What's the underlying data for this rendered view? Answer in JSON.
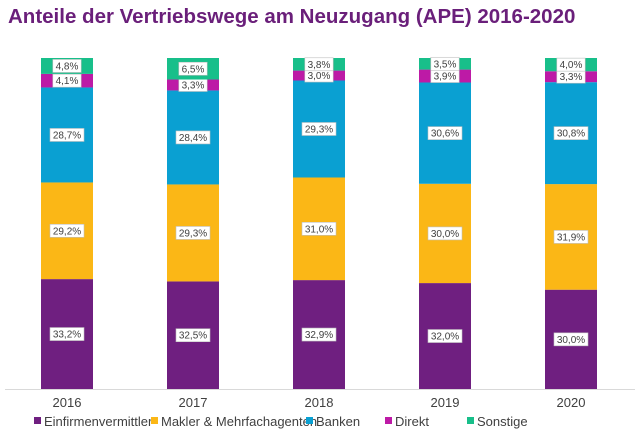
{
  "chart_data": {
    "type": "bar",
    "stacked": true,
    "title": "Anteile der Vertriebswege am Neuzugang (APE) 2016-2020",
    "xlabel": "",
    "ylabel": "",
    "ylim": [
      0,
      100
    ],
    "grid": false,
    "legend": "bottom",
    "categories": [
      "2016",
      "2017",
      "2018",
      "2019",
      "2020"
    ],
    "series": [
      {
        "name": "Einfirmenvermittler",
        "color": "#6f1f80",
        "values": [
          33.2,
          32.5,
          32.9,
          32.0,
          30.0
        ],
        "labels": [
          "33,2%",
          "32,5%",
          "32,9%",
          "32,0%",
          "30,0%"
        ]
      },
      {
        "name": "Makler & Mehrfachagenten",
        "color": "#fbb716",
        "values": [
          29.2,
          29.3,
          31.0,
          30.0,
          31.9
        ],
        "labels": [
          "29,2%",
          "29,3%",
          "31,0%",
          "30,0%",
          "31,9%"
        ]
      },
      {
        "name": "Banken",
        "color": "#0aa0d2",
        "values": [
          28.7,
          28.4,
          29.3,
          30.6,
          30.8
        ],
        "labels": [
          "28,7%",
          "28,4%",
          "29,3%",
          "30,6%",
          "30,8%"
        ]
      },
      {
        "name": "Direkt",
        "color": "#bd1aa6",
        "values": [
          4.1,
          3.3,
          3.0,
          3.9,
          3.3
        ],
        "labels": [
          "4,1%",
          "3,3%",
          "3,0%",
          "3,9%",
          "3,3%"
        ]
      },
      {
        "name": "Sonstige",
        "color": "#18bf8a",
        "values": [
          4.8,
          6.5,
          3.8,
          3.5,
          4.0
        ],
        "labels": [
          "4,8%",
          "6,5%",
          "3,8%",
          "3,5%",
          "4,0%"
        ]
      }
    ]
  }
}
